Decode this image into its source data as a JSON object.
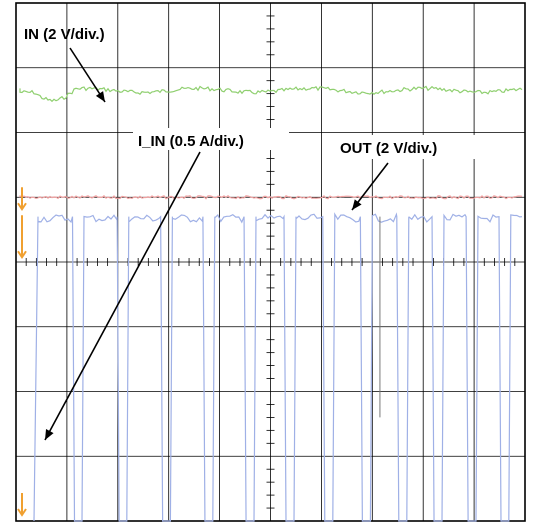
{
  "chart_data": {
    "type": "line",
    "grid": {
      "divisions_x": 10,
      "divisions_y": 8,
      "minor_ticks_on_center_axes": true
    },
    "series": [
      {
        "name": "IN (2 V/div.)",
        "color": "#8fcf6f",
        "waveform": "near-constant level with small ripple; initial dip at start",
        "level_div_from_top": 1.35
      },
      {
        "name": "OUT (2 V/div.)",
        "color": "#f0a0a0",
        "waveform": "near-constant level",
        "level_div_from_top": 3.0
      },
      {
        "name": "I_IN (0.5 A/div.)",
        "color": "#9fb0e6",
        "waveform": "pulsed square wave between high and low levels",
        "high_div_from_top": 3.3,
        "low_div_from_top": 8.0
      }
    ],
    "annotations": [
      {
        "text": "IN (2 V/div.)",
        "points_to": "IN"
      },
      {
        "text": "I_IN (0.5 A/div.)",
        "points_to": "I_IN"
      },
      {
        "text": "OUT (2 V/div.)",
        "points_to": "OUT"
      }
    ],
    "markers_color": "#f0a030"
  },
  "labels": {
    "in": "IN (2 V/div.)",
    "iin": "I_IN (0.5 A/div.)",
    "out": "OUT (2 V/div.)"
  }
}
